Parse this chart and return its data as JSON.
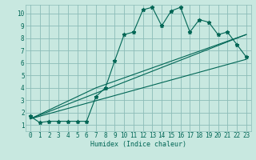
{
  "xlabel": "Humidex (Indice chaleur)",
  "bg_color": "#c8e8e0",
  "grid_color": "#8cbcb8",
  "line_color": "#006655",
  "xlim": [
    -0.5,
    23.5
  ],
  "ylim": [
    0.5,
    10.7
  ],
  "xticks": [
    0,
    1,
    2,
    3,
    4,
    5,
    6,
    7,
    8,
    9,
    10,
    11,
    12,
    13,
    14,
    15,
    16,
    17,
    18,
    19,
    20,
    21,
    22,
    23
  ],
  "yticks": [
    1,
    2,
    3,
    4,
    5,
    6,
    7,
    8,
    9,
    10
  ],
  "series1_x": [
    0,
    1,
    2,
    3,
    4,
    5,
    6,
    7,
    8,
    9,
    10,
    11,
    12,
    13,
    14,
    15,
    16,
    17,
    18,
    19,
    20,
    21,
    22,
    23
  ],
  "series1_y": [
    1.7,
    1.2,
    1.3,
    1.3,
    1.3,
    1.3,
    1.3,
    3.3,
    4.0,
    6.2,
    8.3,
    8.5,
    10.3,
    10.5,
    9.0,
    10.2,
    10.5,
    8.5,
    9.5,
    9.3,
    8.3,
    8.5,
    7.5,
    6.5
  ],
  "series2_x": [
    0,
    23
  ],
  "series2_y": [
    1.5,
    6.3
  ],
  "series3_x": [
    0,
    23
  ],
  "series3_y": [
    1.5,
    8.3
  ],
  "series4_x": [
    0,
    7,
    23
  ],
  "series4_y": [
    1.5,
    4.0,
    8.3
  ]
}
